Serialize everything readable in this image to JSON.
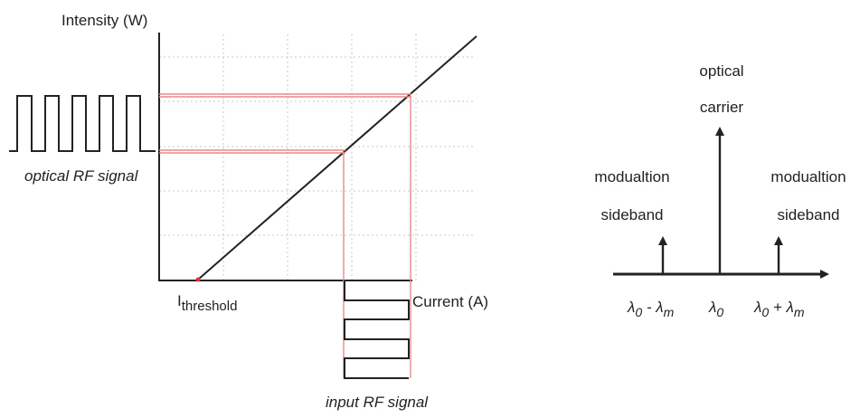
{
  "left_diagram": {
    "y_axis_label": "Intensity (W)",
    "x_axis_label": "Current (A)",
    "threshold_label_main": "I",
    "threshold_label_sub": "threshold",
    "optical_signal_label": "optical RF signal",
    "input_signal_label": "input RF signal"
  },
  "right_diagram": {
    "carrier_label_line1": "optical",
    "carrier_label_line2": "carrier",
    "left_sideband_line1": "modualtion",
    "left_sideband_line2": "sideband",
    "right_sideband_line1": "modualtion",
    "right_sideband_line2": "sideband",
    "tick_left_lambda": "λ",
    "tick_left_sub0": "0",
    "tick_left_op": " - λ",
    "tick_left_subm": "m",
    "tick_center_lambda": "λ",
    "tick_center_sub0": "0",
    "tick_right_lambda": "λ",
    "tick_right_sub0": "0",
    "tick_right_op": " + λ",
    "tick_right_subm": "m"
  }
}
